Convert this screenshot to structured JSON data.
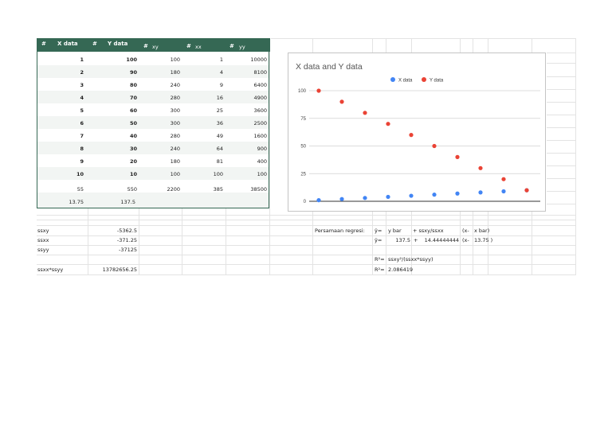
{
  "table": {
    "headers": [
      {
        "hash": "#",
        "label": "X data"
      },
      {
        "hash": "#",
        "label": "Y data"
      },
      {
        "hash": "#",
        "label": "xy"
      },
      {
        "hash": "#",
        "label": "xx"
      },
      {
        "hash": "#",
        "label": "yy"
      }
    ],
    "rows": [
      [
        "1",
        "100",
        "100",
        "1",
        "10000"
      ],
      [
        "2",
        "90",
        "180",
        "4",
        "8100"
      ],
      [
        "3",
        "80",
        "240",
        "9",
        "6400"
      ],
      [
        "4",
        "70",
        "280",
        "16",
        "4900"
      ],
      [
        "5",
        "60",
        "300",
        "25",
        "3600"
      ],
      [
        "6",
        "50",
        "300",
        "36",
        "2500"
      ],
      [
        "7",
        "40",
        "280",
        "49",
        "1600"
      ],
      [
        "8",
        "30",
        "240",
        "64",
        "900"
      ],
      [
        "9",
        "20",
        "180",
        "81",
        "400"
      ],
      [
        "10",
        "10",
        "100",
        "100",
        "100"
      ]
    ],
    "totals": [
      "55",
      "550",
      "2200",
      "385",
      "38500"
    ],
    "means": [
      "13.75",
      "137.5"
    ]
  },
  "stats": [
    {
      "label": "ssxy",
      "value": "-5362.5"
    },
    {
      "label": "ssxx",
      "value": "-371.25"
    },
    {
      "label": "ssyy",
      "value": "-37125"
    },
    {
      "label": "ssxx*ssyy",
      "value": "13782656.25"
    }
  ],
  "regression": {
    "label": "Persamaan regresi:",
    "l1": {
      "a": "ŷ=",
      "b": "y bar",
      "c": "+ ssxy/ssxx",
      "d": "(x-",
      "e": "x bar)"
    },
    "l2": {
      "a": "ŷ=",
      "b": "137.5",
      "c": "+",
      "d": "14.44444444",
      "e": "(x-",
      "f": "13.75 )"
    },
    "l3": {
      "a": "R²=",
      "b": "ssxy²/(ssxx*ssyy)"
    },
    "l4": {
      "a": "R²=",
      "b": "2.086419"
    }
  },
  "chart_data": {
    "type": "scatter",
    "title": "X data and Y data",
    "legend_position": "top-right",
    "grid": true,
    "yticks": [
      0,
      25,
      50,
      75,
      100
    ],
    "ylim": [
      0,
      100
    ],
    "x": [
      1,
      2,
      3,
      4,
      5,
      6,
      7,
      8,
      9,
      10
    ],
    "series": [
      {
        "name": "X data",
        "color": "#4285f4",
        "values": [
          1,
          2,
          3,
          4,
          5,
          6,
          7,
          8,
          9,
          10
        ]
      },
      {
        "name": "Y data",
        "color": "#ea4335",
        "values": [
          100,
          90,
          80,
          70,
          60,
          50,
          40,
          30,
          20,
          10
        ]
      }
    ]
  }
}
